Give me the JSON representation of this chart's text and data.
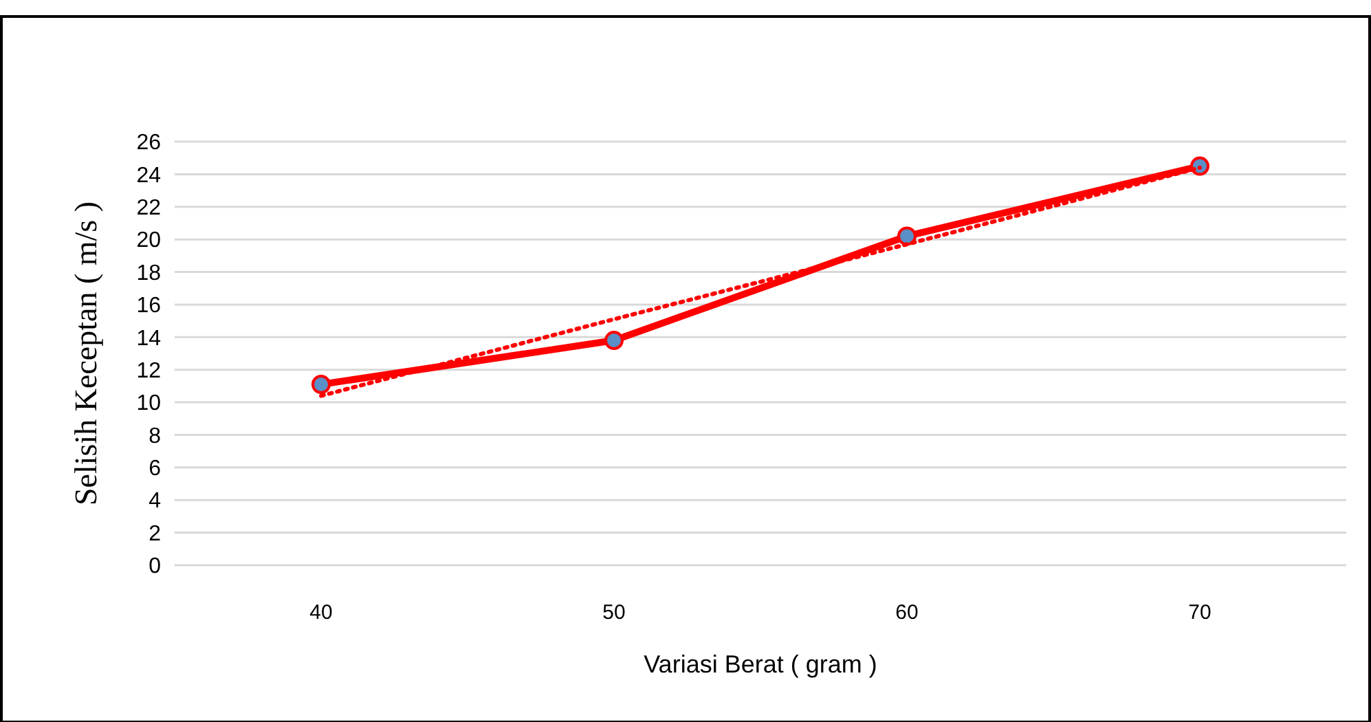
{
  "chart_data": {
    "type": "line",
    "xlabel": "Variasi Berat ( gram )",
    "ylabel": "Selisih Keceptan ( m/s )",
    "categories": [
      "40",
      "50",
      "60",
      "70"
    ],
    "series": [
      {
        "color": "#ff0000",
        "values": [
          11.1,
          13.8,
          20.2,
          24.5
        ],
        "marker": "circle",
        "line_style": "solid"
      },
      {
        "type": "line",
        "color": "#ff0000",
        "values": [
          10.4,
          15.1,
          19.7,
          24.4
        ],
        "marker": "none",
        "line_style": "dotted"
      }
    ],
    "ylim": [
      0,
      26
    ],
    "yticks": [
      0,
      2,
      4,
      6,
      8,
      10,
      12,
      14,
      16,
      18,
      20,
      22,
      24,
      26
    ],
    "grid": "y"
  }
}
